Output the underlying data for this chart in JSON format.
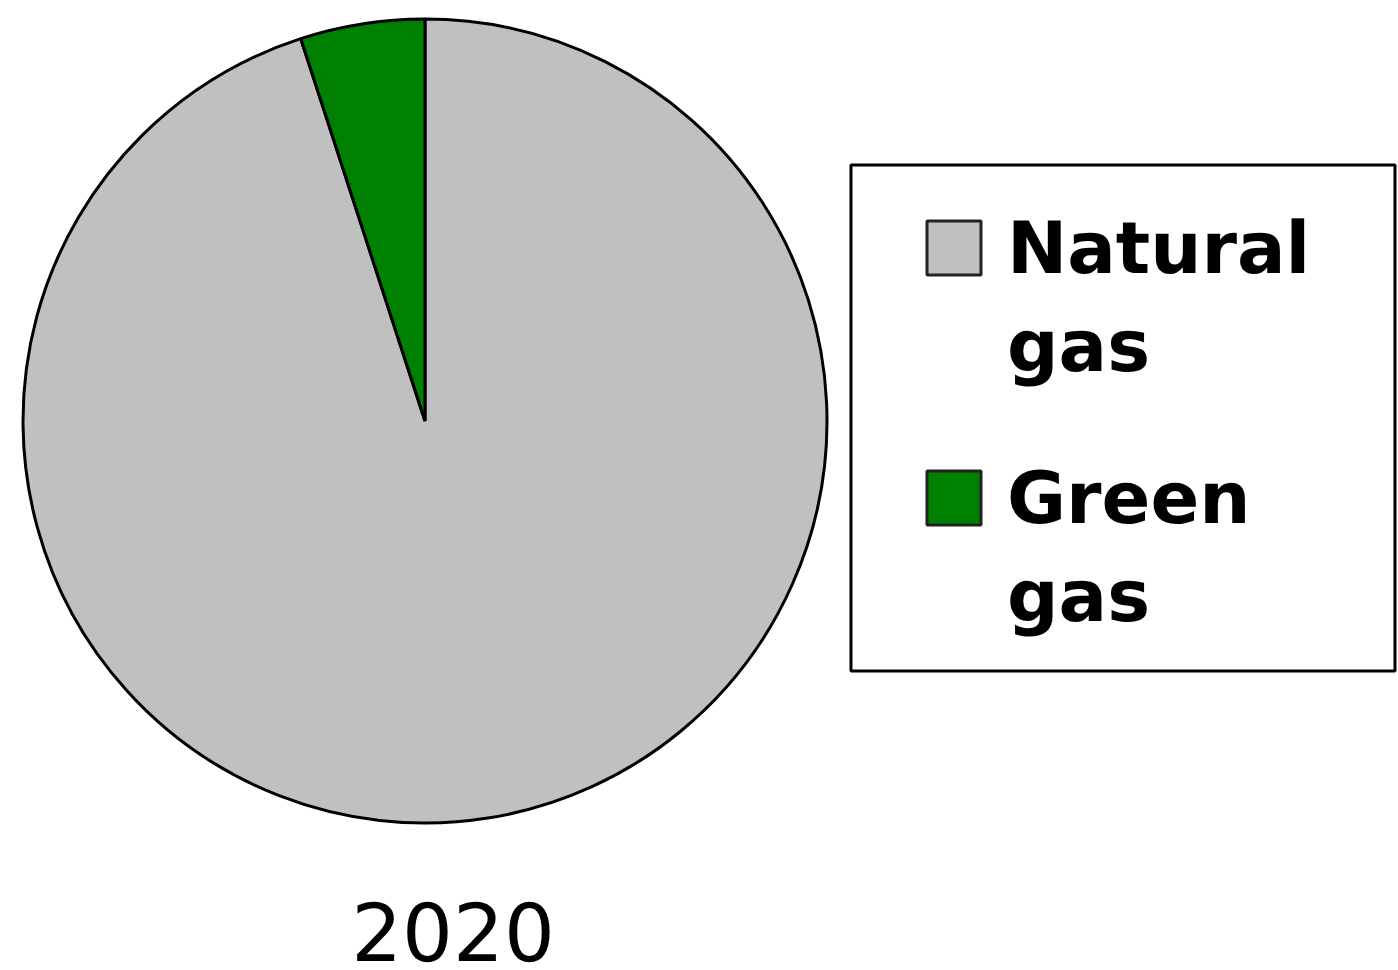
{
  "chart_data": {
    "type": "pie",
    "title": "2020",
    "categories": [
      "Natural gas",
      "Green gas"
    ],
    "values": [
      95,
      5
    ],
    "colors": [
      "#c0c0c0",
      "#008000"
    ],
    "legend": "right"
  }
}
